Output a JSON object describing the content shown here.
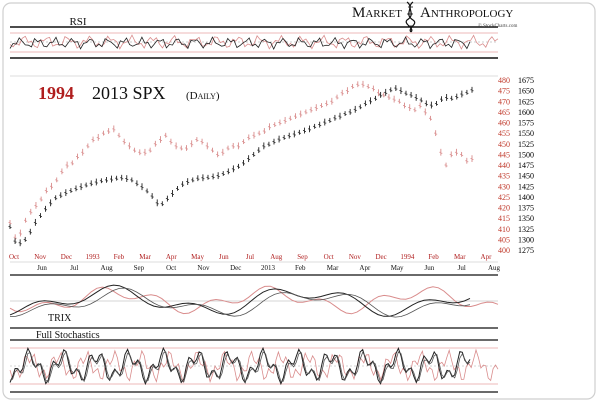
{
  "header": {
    "logo_word1": "Market",
    "logo_word2": "Anthropology",
    "source": "© StockCharts.com",
    "logo_icon": "dna-helix-icon"
  },
  "chart_data": {
    "type": "line",
    "title_part1": "1994",
    "title_part2": "2013 SPX",
    "title_part3": "(Daily)",
    "panels": {
      "rsi": "RSI",
      "trix": "TRIX",
      "stoch": "Full Stochastics"
    },
    "right_axis_1994": {
      "ticks": [
        "480",
        "475",
        "470",
        "465",
        "460",
        "455",
        "450",
        "445",
        "440",
        "435",
        "430",
        "425",
        "420",
        "415",
        "410",
        "405",
        "400"
      ],
      "range": [
        400,
        480
      ],
      "color": "#c0392b"
    },
    "right_axis_2013": {
      "ticks": [
        "1675",
        "1650",
        "1625",
        "1600",
        "1575",
        "1550",
        "1525",
        "1500",
        "1475",
        "1450",
        "1425",
        "1400",
        "1375",
        "1350",
        "1325",
        "1300",
        "1275"
      ],
      "range": [
        1275,
        1675
      ],
      "color": "#000000"
    },
    "x_axis_top_1994": [
      "Oct",
      "Nov",
      "Dec",
      "1993",
      "Feb",
      "Mar",
      "Apr",
      "May",
      "Jun",
      "Jul",
      "Aug",
      "Sep",
      "Oct",
      "Nov",
      "Dec",
      "1994",
      "Feb",
      "Mar",
      "Apr"
    ],
    "x_axis_bottom_2013": [
      "Jun",
      "Jul",
      "Aug",
      "Sep",
      "Oct",
      "Nov",
      "Dec",
      "2013",
      "Feb",
      "Mar",
      "Apr",
      "May",
      "Jun",
      "Jul",
      "Aug"
    ],
    "series": [
      {
        "name": "1994",
        "color": "#d98c8c",
        "values": [
          413,
          406,
          408,
          414,
          418,
          421,
          424,
          428,
          430,
          433,
          437,
          440,
          441,
          444,
          446,
          449,
          452,
          453,
          455,
          456,
          457,
          454,
          451,
          449,
          447,
          446,
          446,
          447,
          450,
          452,
          454,
          451,
          449,
          448,
          448,
          450,
          452,
          451,
          449,
          447,
          445,
          446,
          448,
          449,
          449,
          451,
          453,
          454,
          455,
          456,
          458,
          459,
          460,
          461,
          462,
          463,
          464,
          465,
          466,
          467,
          468,
          469,
          470,
          472,
          474,
          475,
          477,
          478,
          478,
          477,
          476,
          474,
          473,
          472,
          471,
          470,
          468,
          467,
          466,
          468,
          465,
          462,
          455,
          446,
          440,
          445,
          446,
          445,
          442,
          443
        ]
      },
      {
        "name": "2013",
        "color": "#222222",
        "values": [
          1330,
          1296,
          1292,
          1300,
          1318,
          1340,
          1356,
          1372,
          1386,
          1398,
          1404,
          1410,
          1415,
          1420,
          1424,
          1428,
          1432,
          1435,
          1438,
          1440,
          1442,
          1444,
          1445,
          1443,
          1440,
          1432,
          1424,
          1414,
          1402,
          1386,
          1384,
          1396,
          1408,
          1420,
          1430,
          1436,
          1440,
          1444,
          1445,
          1446,
          1448,
          1450,
          1455,
          1460,
          1466,
          1472,
          1480,
          1490,
          1500,
          1510,
          1520,
          1524,
          1530,
          1536,
          1540,
          1544,
          1548,
          1552,
          1556,
          1560,
          1566,
          1570,
          1576,
          1580,
          1586,
          1590,
          1596,
          1600,
          1606,
          1612,
          1620,
          1626,
          1632,
          1640,
          1646,
          1652,
          1656,
          1650,
          1644,
          1640,
          1634,
          1628,
          1620,
          1616,
          1620,
          1630,
          1634,
          1632,
          1636,
          1642,
          1646,
          1652
        ]
      }
    ]
  }
}
